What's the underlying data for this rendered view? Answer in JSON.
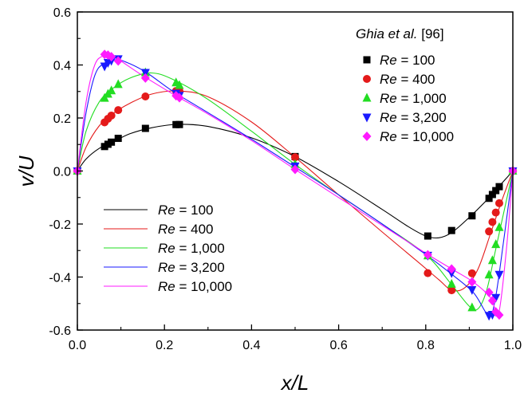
{
  "chart_data": {
    "type": "scatter",
    "xlabel": "x/L",
    "ylabel": "v/U",
    "xlim": [
      0.0,
      1.0
    ],
    "ylim": [
      -0.6,
      0.6
    ],
    "x_ticks": [
      "0.0",
      "0.2",
      "0.4",
      "0.6",
      "0.8",
      "1.0"
    ],
    "y_ticks": [
      "0.6",
      "0.4",
      "0.2",
      "0.0",
      "-0.2",
      "-0.4",
      "-0.6"
    ],
    "grid": false,
    "markers_legend": {
      "title_italic": "Ghia et al.",
      "title_ref": " [96]",
      "placement": "top-right"
    },
    "lines_legend": {
      "placement": "bottom-left"
    },
    "series": [
      {
        "re_prefix": "Re",
        "re_value": " = 100",
        "color": "#000000",
        "marker": "square",
        "points": [
          [
            0.0,
            0.0
          ],
          [
            0.0625,
            0.0923
          ],
          [
            0.0703,
            0.1009
          ],
          [
            0.0781,
            0.1089
          ],
          [
            0.0938,
            0.1232
          ],
          [
            0.1563,
            0.1608
          ],
          [
            0.2266,
            0.1751
          ],
          [
            0.2344,
            0.1753
          ],
          [
            0.5,
            0.0545
          ],
          [
            0.8047,
            -0.2453
          ],
          [
            0.8594,
            -0.2245
          ],
          [
            0.9063,
            -0.1691
          ],
          [
            0.9453,
            -0.1031
          ],
          [
            0.9531,
            -0.0886
          ],
          [
            0.9609,
            -0.0739
          ],
          [
            0.9688,
            -0.0591
          ],
          [
            1.0,
            0.0
          ]
        ],
        "curve": [
          [
            0.0,
            0.0
          ],
          [
            0.02,
            0.045
          ],
          [
            0.05,
            0.085
          ],
          [
            0.08,
            0.108
          ],
          [
            0.12,
            0.14
          ],
          [
            0.17,
            0.163
          ],
          [
            0.23,
            0.176
          ],
          [
            0.3,
            0.168
          ],
          [
            0.4,
            0.125
          ],
          [
            0.5,
            0.054
          ],
          [
            0.6,
            -0.04
          ],
          [
            0.7,
            -0.145
          ],
          [
            0.76,
            -0.21
          ],
          [
            0.8,
            -0.245
          ],
          [
            0.83,
            -0.252
          ],
          [
            0.86,
            -0.232
          ],
          [
            0.9,
            -0.175
          ],
          [
            0.94,
            -0.11
          ],
          [
            0.97,
            -0.055
          ],
          [
            1.0,
            0.0
          ]
        ]
      },
      {
        "re_prefix": "Re",
        "re_value": " = 400",
        "color": "#e41a1a",
        "marker": "circle",
        "points": [
          [
            0.0,
            0.0
          ],
          [
            0.0625,
            0.1836
          ],
          [
            0.0703,
            0.1971
          ],
          [
            0.0781,
            0.2092
          ],
          [
            0.0938,
            0.2297
          ],
          [
            0.1563,
            0.2812
          ],
          [
            0.2266,
            0.302
          ],
          [
            0.2344,
            0.3017
          ],
          [
            0.5,
            0.0519
          ],
          [
            0.8047,
            -0.3853
          ],
          [
            0.8594,
            -0.4499
          ],
          [
            0.9063,
            -0.386
          ],
          [
            0.9453,
            -0.228
          ],
          [
            0.9531,
            -0.1925
          ],
          [
            0.9609,
            -0.1566
          ],
          [
            0.9688,
            -0.1215
          ],
          [
            1.0,
            0.0
          ]
        ],
        "curve": [
          [
            0.0,
            0.0
          ],
          [
            0.02,
            0.09
          ],
          [
            0.05,
            0.17
          ],
          [
            0.08,
            0.215
          ],
          [
            0.12,
            0.255
          ],
          [
            0.17,
            0.29
          ],
          [
            0.23,
            0.302
          ],
          [
            0.3,
            0.28
          ],
          [
            0.4,
            0.185
          ],
          [
            0.5,
            0.052
          ],
          [
            0.6,
            -0.09
          ],
          [
            0.7,
            -0.23
          ],
          [
            0.78,
            -0.34
          ],
          [
            0.83,
            -0.41
          ],
          [
            0.86,
            -0.45
          ],
          [
            0.89,
            -0.44
          ],
          [
            0.92,
            -0.37
          ],
          [
            0.95,
            -0.23
          ],
          [
            0.975,
            -0.11
          ],
          [
            1.0,
            0.0
          ]
        ]
      },
      {
        "re_prefix": "Re",
        "re_value": " = 1,000",
        "color": "#22dd22",
        "marker": "triangle-up",
        "points": [
          [
            0.0,
            0.0
          ],
          [
            0.0625,
            0.2749
          ],
          [
            0.0703,
            0.2901
          ],
          [
            0.0781,
            0.303
          ],
          [
            0.0938,
            0.3267
          ],
          [
            0.1563,
            0.371
          ],
          [
            0.2266,
            0.3331
          ],
          [
            0.2344,
            0.3233
          ],
          [
            0.5,
            0.0251
          ],
          [
            0.8047,
            -0.3197
          ],
          [
            0.8594,
            -0.4268
          ],
          [
            0.9063,
            -0.5154
          ],
          [
            0.9453,
            -0.3918
          ],
          [
            0.9531,
            -0.3375
          ],
          [
            0.9609,
            -0.2772
          ],
          [
            0.9688,
            -0.2128
          ],
          [
            1.0,
            0.0
          ]
        ],
        "curve": [
          [
            0.0,
            0.0
          ],
          [
            0.02,
            0.15
          ],
          [
            0.05,
            0.26
          ],
          [
            0.08,
            0.31
          ],
          [
            0.12,
            0.35
          ],
          [
            0.17,
            0.37
          ],
          [
            0.22,
            0.345
          ],
          [
            0.3,
            0.27
          ],
          [
            0.4,
            0.15
          ],
          [
            0.5,
            0.025
          ],
          [
            0.6,
            -0.09
          ],
          [
            0.7,
            -0.2
          ],
          [
            0.8,
            -0.315
          ],
          [
            0.86,
            -0.43
          ],
          [
            0.9,
            -0.51
          ],
          [
            0.92,
            -0.52
          ],
          [
            0.94,
            -0.45
          ],
          [
            0.96,
            -0.3
          ],
          [
            0.98,
            -0.15
          ],
          [
            1.0,
            0.0
          ]
        ]
      },
      {
        "re_prefix": "Re",
        "re_value": " = 3,200",
        "color": "#1a1aff",
        "marker": "triangle-down",
        "points": [
          [
            0.0,
            0.0
          ],
          [
            0.0625,
            0.3956
          ],
          [
            0.0703,
            0.4092
          ],
          [
            0.0781,
            0.4167
          ],
          [
            0.0938,
            0.423
          ],
          [
            0.1563,
            0.3714
          ],
          [
            0.2266,
            0.2928
          ],
          [
            0.2344,
            0.2851
          ],
          [
            0.5,
            0.0183
          ],
          [
            0.8047,
            -0.3185
          ],
          [
            0.8594,
            -0.3843
          ],
          [
            0.9063,
            -0.4479
          ],
          [
            0.9453,
            -0.5451
          ],
          [
            0.9531,
            -0.5412
          ],
          [
            0.9609,
            -0.4773
          ],
          [
            0.9688,
            -0.3902
          ],
          [
            1.0,
            0.0
          ]
        ],
        "curve": [
          [
            0.0,
            0.0
          ],
          [
            0.02,
            0.22
          ],
          [
            0.04,
            0.36
          ],
          [
            0.06,
            0.405
          ],
          [
            0.09,
            0.42
          ],
          [
            0.12,
            0.405
          ],
          [
            0.16,
            0.37
          ],
          [
            0.22,
            0.3
          ],
          [
            0.3,
            0.22
          ],
          [
            0.4,
            0.12
          ],
          [
            0.5,
            0.015
          ],
          [
            0.6,
            -0.09
          ],
          [
            0.7,
            -0.2
          ],
          [
            0.8,
            -0.315
          ],
          [
            0.86,
            -0.39
          ],
          [
            0.91,
            -0.46
          ],
          [
            0.945,
            -0.545
          ],
          [
            0.96,
            -0.48
          ],
          [
            0.98,
            -0.25
          ],
          [
            1.0,
            0.0
          ]
        ]
      },
      {
        "re_prefix": "Re",
        "re_value": " = 10,000",
        "color": "#ff1aff",
        "marker": "diamond",
        "points": [
          [
            0.0,
            0.0
          ],
          [
            0.0625,
            0.4398
          ],
          [
            0.0703,
            0.4373
          ],
          [
            0.0781,
            0.4312
          ],
          [
            0.0938,
            0.4149
          ],
          [
            0.1563,
            0.3507
          ],
          [
            0.2266,
            0.2839
          ],
          [
            0.2344,
            0.2765
          ],
          [
            0.5,
            0.0059
          ],
          [
            0.8047,
            -0.316
          ],
          [
            0.8594,
            -0.3696
          ],
          [
            0.9063,
            -0.4186
          ],
          [
            0.9453,
            -0.4578
          ],
          [
            0.9531,
            -0.489
          ],
          [
            0.9609,
            -0.5314
          ],
          [
            0.9688,
            -0.5433
          ],
          [
            1.0,
            0.0
          ]
        ],
        "curve": [
          [
            0.0,
            0.0
          ],
          [
            0.02,
            0.26
          ],
          [
            0.04,
            0.4
          ],
          [
            0.06,
            0.435
          ],
          [
            0.08,
            0.435
          ],
          [
            0.1,
            0.415
          ],
          [
            0.15,
            0.36
          ],
          [
            0.22,
            0.29
          ],
          [
            0.3,
            0.215
          ],
          [
            0.4,
            0.115
          ],
          [
            0.5,
            0.006
          ],
          [
            0.6,
            -0.1
          ],
          [
            0.7,
            -0.205
          ],
          [
            0.8,
            -0.31
          ],
          [
            0.86,
            -0.37
          ],
          [
            0.91,
            -0.42
          ],
          [
            0.95,
            -0.48
          ],
          [
            0.967,
            -0.54
          ],
          [
            0.985,
            -0.3
          ],
          [
            1.0,
            0.0
          ]
        ]
      }
    ]
  }
}
